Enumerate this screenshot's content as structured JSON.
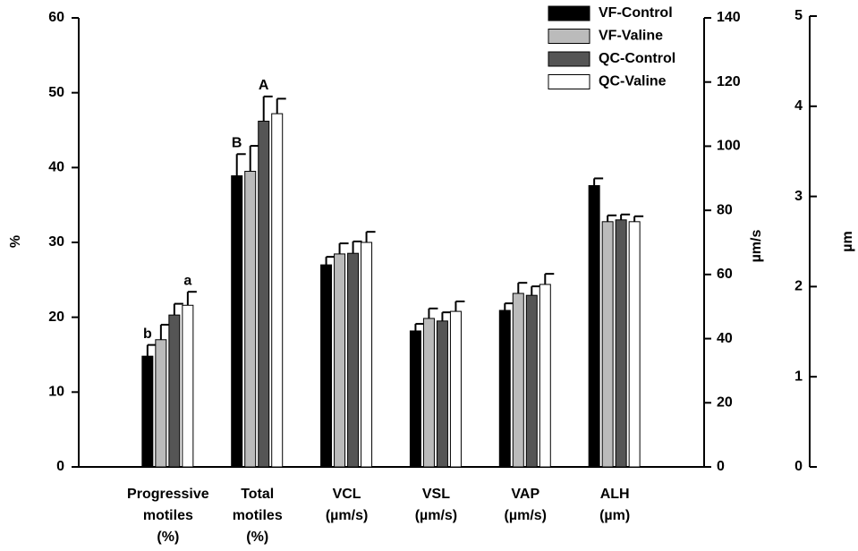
{
  "chart_data": {
    "type": "bar",
    "categories": [
      "Progressive motiles (%)",
      "Total motiles (%)",
      "VCL (µm/s)",
      "VSL (µm/s)",
      "VAP (µm/s)",
      "ALH (µm)"
    ],
    "category_axes": [
      "y",
      "y",
      "y2",
      "y2",
      "y2",
      "y3"
    ],
    "series": [
      {
        "name": "VF-Control",
        "color": "#000000",
        "values": [
          14.8,
          38.9,
          63.0,
          42.4,
          48.8,
          3.12
        ],
        "errors": [
          1.5,
          2.9,
          2.5,
          2.2,
          2.2,
          0.08
        ]
      },
      {
        "name": "VF-Valine",
        "color": "#bbbbbb",
        "values": [
          17.0,
          39.5,
          66.4,
          46.3,
          54.1,
          2.72
        ],
        "errors": [
          2.0,
          3.4,
          3.3,
          3.1,
          3.3,
          0.07
        ]
      },
      {
        "name": "QC-Control",
        "color": "#555555",
        "values": [
          20.3,
          46.2,
          66.6,
          45.5,
          53.5,
          2.74
        ],
        "errors": [
          1.5,
          3.3,
          3.7,
          2.7,
          2.8,
          0.06
        ]
      },
      {
        "name": "QC-Valine",
        "color": "#ffffff",
        "values": [
          21.6,
          47.2,
          70.0,
          48.5,
          56.9,
          2.72
        ],
        "errors": [
          1.8,
          2.0,
          3.3,
          3.1,
          3.3,
          0.06
        ]
      }
    ],
    "annotations": [
      {
        "text": "b",
        "category": 0,
        "series": 0
      },
      {
        "text": "a",
        "category": 0,
        "series": 3
      },
      {
        "text": "B",
        "category": 1,
        "series": 0
      },
      {
        "text": "A",
        "category": 1,
        "series": 2
      }
    ],
    "ylabel": "%",
    "ylim": [
      0,
      60
    ],
    "yticks": [
      0,
      10,
      20,
      30,
      40,
      50,
      60
    ],
    "y2label": "µm/s",
    "y2lim": [
      0,
      140
    ],
    "y2ticks": [
      0,
      20,
      40,
      60,
      80,
      100,
      120,
      140
    ],
    "y3label": "µm",
    "y3lim": [
      0,
      5
    ],
    "y3ticks": [
      0,
      1,
      2,
      3,
      4,
      5
    ]
  }
}
